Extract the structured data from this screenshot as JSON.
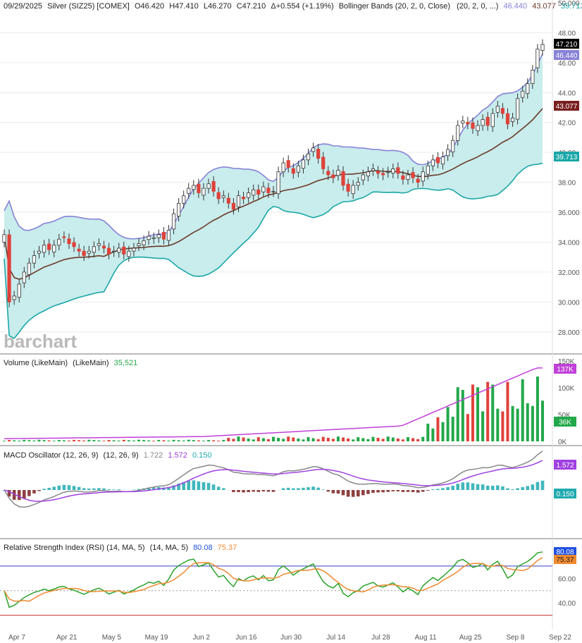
{
  "header": {
    "date": "09/29/2025",
    "symbol": "Silver (SIZ25) [COMEX]",
    "open": "O46.420",
    "high": "H47.410",
    "low": "L46.270",
    "close": "C47.210",
    "change": "Δ+0.554 (+1.19%)",
    "bb_label": "Bollinger Bands (20, 2, 0, Close)",
    "bb_params": "(20, 2, 0, ...)",
    "bb_upper": "46.440",
    "bb_mid": "43.077",
    "bb_lower": "39.713"
  },
  "watermark": "barchart",
  "volume_panel": {
    "label": "Volume (LikeMain)",
    "params": "(LikeMain)",
    "value": "35,521",
    "badge_avg": "137K",
    "badge_vol": "36K"
  },
  "macd_panel": {
    "label": "MACD Oscillator (12, 26, 9)",
    "params": "(12, 26, 9)",
    "v1": "1.722",
    "v2": "1.572",
    "v3": "0.150"
  },
  "rsi_panel": {
    "label": "Relative Strength Index (RSI) (14, MA, 5)",
    "params": "(14, MA, 5)",
    "v1": "80.08",
    "v2": "75.37"
  },
  "colors": {
    "up": "#22a84a",
    "down": "#e0413a",
    "band_fill": "#c9ecec",
    "band_line": "#8882d8",
    "mid": "#6b3a2a",
    "lower": "#1aa7a7",
    "volume_avg": "#c040d8",
    "macd_line": "#888888",
    "macd_signal": "#a040e0",
    "hist_teal": "#20aab0",
    "hist_maroon": "#7a1f1f",
    "rsi": "#2aa22a",
    "rsi_ma": "#f08a30"
  },
  "chart_data": {
    "type": "candlestick",
    "x_ticks": [
      "Apr 7",
      "Apr 21",
      "May 5",
      "May 19",
      "Jun 2",
      "Jun 16",
      "Jun 30",
      "Jul 14",
      "Jul 28",
      "Aug 11",
      "Aug 25",
      "Sep 8",
      "Sep 22"
    ],
    "price_axis": [
      "50.000",
      "48.00",
      "46.00",
      "44.00",
      "42.00",
      "40.00",
      "38.00",
      "36.000",
      "34.000",
      "32.000",
      "30.000",
      "28.000"
    ],
    "price_ylim": [
      27,
      50
    ],
    "close_series": [
      34.5,
      30.0,
      30.4,
      31.2,
      32.0,
      32.6,
      33.1,
      33.4,
      33.8,
      33.5,
      33.8,
      34.2,
      34.3,
      33.9,
      33.7,
      33.4,
      33.1,
      33.4,
      33.7,
      33.9,
      33.6,
      33.2,
      33.4,
      33.6,
      33.2,
      33.4,
      33.6,
      33.9,
      34.1,
      34.4,
      34.3,
      34.5,
      34.2,
      34.8,
      35.9,
      36.6,
      37.1,
      37.6,
      37.8,
      37.3,
      37.6,
      37.9,
      37.4,
      36.9,
      37.1,
      36.6,
      36.2,
      37.1,
      36.9,
      37.3,
      37.5,
      37.2,
      37.7,
      37.3,
      37.4,
      38.7,
      39.3,
      39.0,
      38.6,
      39.1,
      39.5,
      39.9,
      40.3,
      39.6,
      38.9,
      38.5,
      38.3,
      38.8,
      37.8,
      37.4,
      37.8,
      38.0,
      38.5,
      38.7,
      38.9,
      38.6,
      38.5,
      38.7,
      38.9,
      38.6,
      38.2,
      38.5,
      38.3,
      38.0,
      38.7,
      39.1,
      39.5,
      39.3,
      39.7,
      40.2,
      40.8,
      41.8,
      42.1,
      41.9,
      41.6,
      41.8,
      42.2,
      41.8,
      42.6,
      43.1,
      42.6,
      41.9,
      42.3,
      43.6,
      44.1,
      44.6,
      45.5,
      46.9,
      47.21
    ],
    "volume_ylim": [
      0,
      150000
    ],
    "volume_axis": [
      "150K",
      "100K",
      "50K",
      "0K"
    ],
    "macd_ylim": [
      -2.6,
      2.2
    ],
    "rsi_axis": [
      "60.00",
      "40.00"
    ],
    "rsi_ylim": [
      20,
      90
    ],
    "rsi_levels": [
      70,
      50,
      30
    ]
  }
}
